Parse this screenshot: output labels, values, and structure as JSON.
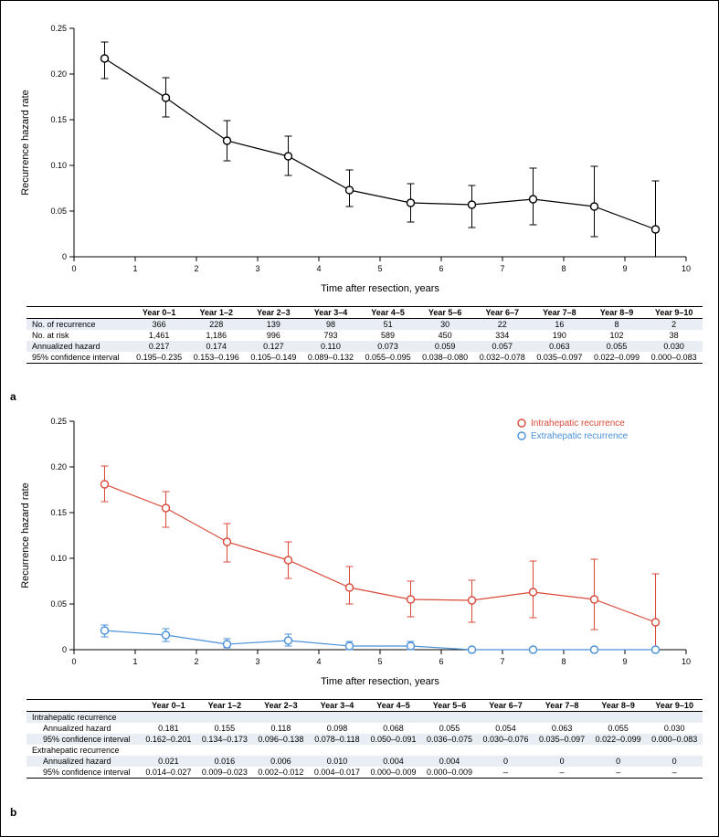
{
  "panel_a": {
    "label": "a",
    "chart": {
      "type": "scatter-line-errorbar",
      "xlabel": "Time after resection, years",
      "ylabel": "Recurrence hazard rate",
      "xlim": [
        0,
        10
      ],
      "ylim": [
        0,
        0.25
      ],
      "xtick_step": 1,
      "ytick_step": 0.05,
      "axis_color": "#000000",
      "series_color": "#000000",
      "marker": "circle-open",
      "marker_size": 4,
      "line_width": 1.2,
      "label_fontsize": 11,
      "tick_fontsize": 9,
      "x": [
        0.5,
        1.5,
        2.5,
        3.5,
        4.5,
        5.5,
        6.5,
        7.5,
        8.5,
        9.5
      ],
      "y": [
        0.217,
        0.174,
        0.127,
        0.11,
        0.073,
        0.059,
        0.057,
        0.063,
        0.055,
        0.03
      ],
      "lo": [
        0.195,
        0.153,
        0.105,
        0.089,
        0.055,
        0.038,
        0.032,
        0.035,
        0.022,
        0.0
      ],
      "hi": [
        0.235,
        0.196,
        0.149,
        0.132,
        0.095,
        0.08,
        0.078,
        0.097,
        0.099,
        0.083
      ]
    },
    "table": {
      "col_header_label": "",
      "year_headers": [
        "Year 0–1",
        "Year 1–2",
        "Year 2–3",
        "Year 3–4",
        "Year 4–5",
        "Year 5–6",
        "Year 6–7",
        "Year 7–8",
        "Year 8–9",
        "Year 9–10"
      ],
      "rows": [
        {
          "label": "No. of recurrence",
          "vals": [
            "366",
            "228",
            "139",
            "98",
            "51",
            "30",
            "22",
            "16",
            "8",
            "2"
          ]
        },
        {
          "label": "No. at risk",
          "vals": [
            "1,461",
            "1,186",
            "996",
            "793",
            "589",
            "450",
            "334",
            "190",
            "102",
            "38"
          ]
        },
        {
          "label": "Annualized hazard",
          "vals": [
            "0.217",
            "0.174",
            "0.127",
            "0.110",
            "0.073",
            "0.059",
            "0.057",
            "0.063",
            "0.055",
            "0.030"
          ]
        },
        {
          "label": "95% confidence interval",
          "vals": [
            "0.195–0.235",
            "0.153–0.196",
            "0.105–0.149",
            "0.089–0.132",
            "0.055–0.095",
            "0.038–0.080",
            "0.032–0.078",
            "0.035–0.097",
            "0.022–0.099",
            "0.000–0.083"
          ]
        }
      ]
    }
  },
  "panel_b": {
    "label": "b",
    "chart": {
      "type": "scatter-line-errorbar",
      "xlabel": "Time after resection, years",
      "ylabel": "Recurrence hazard rate",
      "xlim": [
        0,
        10
      ],
      "ylim": [
        0,
        0.25
      ],
      "xtick_step": 1,
      "ytick_step": 0.05,
      "axis_color": "#000000",
      "label_fontsize": 11,
      "tick_fontsize": 9,
      "legend": [
        {
          "label": "Intrahepatic recurrence",
          "color": "#d94a3a"
        },
        {
          "label": "Extrahepatic recurrence",
          "color": "#4a90d9"
        }
      ],
      "series": [
        {
          "name": "intrahepatic",
          "color": "#d94a3a",
          "x": [
            0.5,
            1.5,
            2.5,
            3.5,
            4.5,
            5.5,
            6.5,
            7.5,
            8.5,
            9.5
          ],
          "y": [
            0.181,
            0.155,
            0.118,
            0.098,
            0.068,
            0.055,
            0.054,
            0.063,
            0.055,
            0.03
          ],
          "lo": [
            0.162,
            0.134,
            0.096,
            0.078,
            0.05,
            0.036,
            0.03,
            0.035,
            0.022,
            0.0
          ],
          "hi": [
            0.201,
            0.173,
            0.138,
            0.118,
            0.091,
            0.075,
            0.076,
            0.097,
            0.099,
            0.083
          ]
        },
        {
          "name": "extrahepatic",
          "color": "#4a90d9",
          "x": [
            0.5,
            1.5,
            2.5,
            3.5,
            4.5,
            5.5,
            6.5,
            7.5,
            8.5,
            9.5
          ],
          "y": [
            0.021,
            0.016,
            0.006,
            0.01,
            0.004,
            0.004,
            0,
            0,
            0,
            0
          ],
          "lo": [
            0.014,
            0.009,
            0.002,
            0.004,
            0.0,
            0.0,
            0,
            0,
            0,
            0
          ],
          "hi": [
            0.027,
            0.023,
            0.012,
            0.017,
            0.009,
            0.009,
            0,
            0,
            0,
            0
          ]
        }
      ]
    },
    "table": {
      "year_headers": [
        "Year 0–1",
        "Year 1–2",
        "Year 2–3",
        "Year 3–4",
        "Year 4–5",
        "Year 5–6",
        "Year 6–7",
        "Year 7–8",
        "Year 8–9",
        "Year 9–10"
      ],
      "sections": [
        {
          "title": "Intrahepatic recurrence",
          "rows": [
            {
              "label": "Annualized hazard",
              "vals": [
                "0.181",
                "0.155",
                "0.118",
                "0.098",
                "0.068",
                "0.055",
                "0.054",
                "0.063",
                "0.055",
                "0.030"
              ]
            },
            {
              "label": "95% confidence interval",
              "vals": [
                "0.162–0.201",
                "0.134–0.173",
                "0.096–0.138",
                "0.078–0.118",
                "0.050–0.091",
                "0.036–0.075",
                "0.030–0.076",
                "0.035–0.097",
                "0.022–0.099",
                "0.000–0.083"
              ]
            }
          ]
        },
        {
          "title": "Extrahepatic recurrence",
          "rows": [
            {
              "label": "Annualized hazard",
              "vals": [
                "0.021",
                "0.016",
                "0.006",
                "0.010",
                "0.004",
                "0.004",
                "0",
                "0",
                "0",
                "0"
              ]
            },
            {
              "label": "95% confidence interval",
              "vals": [
                "0.014–0.027",
                "0.009–0.023",
                "0.002–0.012",
                "0.004–0.017",
                "0.000–0.009",
                "0.000–0.009",
                "–",
                "–",
                "–",
                "–"
              ]
            }
          ]
        }
      ]
    }
  }
}
